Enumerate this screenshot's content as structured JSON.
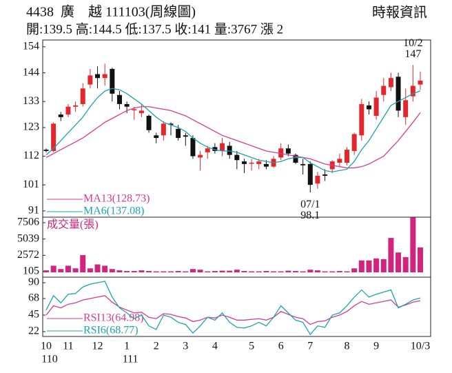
{
  "chart_data": [
    {
      "type": "candlestick",
      "title": "4438  廣　越 111103(周線圖)",
      "subtitle": "開:139.5 高:144.5 低:137.5 收:141 量:3767 漲 2",
      "source": "時報資訊",
      "up_color": "#e3262c",
      "down_color": "#111111",
      "open": [
        114.5,
        114,
        128,
        128,
        131,
        132,
        139.5,
        143.5,
        142,
        145.5,
        135.5,
        132,
        130,
        128.5,
        127.5,
        120,
        120,
        124.5,
        122.5,
        120,
        119,
        111.5,
        113.5,
        115.5,
        114,
        116,
        112.5,
        110,
        109.5,
        109,
        109,
        108,
        111.5,
        115,
        112.5,
        109,
        109,
        101.5,
        105,
        107,
        109.5,
        109.5,
        114,
        120,
        131.5,
        127.5,
        135.5,
        138.5,
        142.5,
        127,
        135,
        139.5
      ],
      "high": [
        115,
        125,
        129,
        132,
        133,
        140,
        145.5,
        146.5,
        147.5,
        146,
        137,
        133,
        131,
        132,
        128,
        121,
        125.5,
        125,
        124,
        121,
        120,
        114,
        116,
        117,
        119,
        117.5,
        114,
        111,
        111,
        111,
        110.5,
        112,
        117,
        116.5,
        113,
        111,
        110,
        106,
        107,
        110.5,
        113,
        115.5,
        121,
        134,
        133,
        137,
        142,
        144,
        144,
        138,
        147,
        144.5
      ],
      "low": [
        113.5,
        113.5,
        125.5,
        127,
        129,
        131,
        138,
        138,
        139,
        133,
        130,
        128.5,
        126,
        127,
        121,
        117,
        118,
        120,
        118,
        116,
        111,
        106.5,
        111,
        113,
        112,
        111,
        107,
        105.5,
        106.5,
        107,
        107,
        107.5,
        110.5,
        112,
        109,
        105,
        98.1,
        99.5,
        102.5,
        105.5,
        108,
        108.5,
        112.5,
        118,
        128,
        126,
        133,
        137,
        127,
        124,
        133,
        137.5
      ],
      "close": [
        114,
        124.5,
        127,
        131,
        131.5,
        138,
        143,
        142,
        143.5,
        136,
        132,
        131,
        130,
        129.5,
        122,
        119,
        124.5,
        124,
        119,
        119.5,
        112,
        112.5,
        115,
        114,
        117,
        112.5,
        110.5,
        109,
        109.5,
        110,
        108,
        111,
        115,
        113,
        109.5,
        108.5,
        101,
        104.5,
        104.5,
        110,
        111,
        114.5,
        120.5,
        132,
        130,
        134.5,
        139,
        142,
        129.5,
        133.5,
        139,
        141
      ],
      "series": [
        {
          "name": "MA13(128.73)",
          "color": "#d63a8f",
          "values": [
            111.5,
            113,
            114.5,
            116,
            117.5,
            119,
            121,
            123,
            125,
            126.5,
            128,
            129.5,
            130.5,
            131,
            131,
            130.5,
            130,
            129.5,
            128.5,
            127.5,
            126,
            124.5,
            123,
            121.5,
            120,
            119,
            118,
            117,
            116,
            115,
            114,
            113.5,
            113,
            112.5,
            112,
            111.5,
            111,
            110,
            109,
            108.5,
            108,
            107.5,
            107.5,
            108,
            109,
            110.5,
            112,
            115,
            118,
            121.5,
            125,
            128.73
          ]
        },
        {
          "name": "MA6(137.08)",
          "color": "#1aa3ae",
          "values": [
            112.5,
            115,
            118,
            121,
            124,
            127,
            131,
            134.5,
            137,
            138,
            137.5,
            136,
            134,
            132,
            129.5,
            127,
            125,
            124,
            123,
            121.5,
            119,
            117,
            115.5,
            114.5,
            114,
            114,
            113.5,
            112.5,
            111.5,
            110.5,
            110,
            109.5,
            110,
            111,
            111.5,
            111.5,
            109.5,
            108,
            106.5,
            106,
            106.5,
            107,
            110,
            114.5,
            118,
            122.5,
            127,
            131.5,
            133,
            134.5,
            136,
            137.08
          ]
        }
      ],
      "annotations": [
        {
          "date": "07/1",
          "value": 98.1
        },
        {
          "date": "10/2",
          "value": 147
        }
      ],
      "ylim": [
        88.6,
        156.6
      ],
      "yticks": [
        154,
        144,
        133,
        123,
        112,
        101,
        91
      ]
    },
    {
      "type": "bar",
      "title": "成交量(張)",
      "color": "#d0247f",
      "values": [
        300,
        1000,
        500,
        1000,
        600,
        2600,
        600,
        1200,
        1000,
        500,
        300,
        200,
        200,
        300,
        200,
        150,
        150,
        150,
        200,
        150,
        500,
        400,
        150,
        200,
        250,
        250,
        400,
        200,
        150,
        150,
        200,
        150,
        150,
        250,
        200,
        150,
        400,
        300,
        150,
        150,
        200,
        150,
        600,
        1800,
        1800,
        2100,
        2000,
        5200,
        3000,
        2300,
        8300,
        3767
      ],
      "ylim": [
        -730,
        8340
      ],
      "yticks": [
        7506,
        5039,
        2572,
        105
      ]
    },
    {
      "type": "line",
      "categories": [
        "10",
        null,
        null,
        "11",
        null,
        null,
        null,
        "12",
        null,
        null,
        null,
        "1",
        null,
        null,
        null,
        "2",
        null,
        null,
        null,
        "3",
        null,
        null,
        null,
        "4",
        null,
        null,
        null,
        null,
        "5",
        null,
        null,
        null,
        "6",
        null,
        null,
        null,
        "7",
        null,
        null,
        null,
        null,
        "8",
        null,
        null,
        null,
        "9",
        null,
        null,
        null,
        null,
        null,
        "10/3"
      ],
      "year_labels": [
        "110",
        null,
        null,
        null,
        null,
        null,
        null,
        null,
        null,
        null,
        null,
        "111",
        null,
        null,
        null,
        null,
        null,
        null,
        null,
        null,
        null,
        null,
        null,
        null,
        null,
        null,
        null,
        null,
        null,
        null,
        null,
        null,
        null,
        null,
        null,
        null,
        null,
        null,
        null,
        null,
        null,
        null,
        null,
        null,
        null,
        null,
        null,
        null,
        null,
        null,
        null,
        null
      ],
      "series": [
        {
          "name": "RSI13(64.98)",
          "color": "#d63a8f",
          "values": [
            45,
            58,
            55,
            60,
            62,
            66,
            68,
            70,
            72,
            63,
            56,
            52,
            48,
            49,
            42,
            40,
            47,
            46,
            43,
            41,
            36,
            38,
            42,
            41,
            45,
            42,
            38,
            38,
            39,
            40,
            38,
            42,
            50,
            46,
            42,
            40,
            32,
            36,
            37,
            42,
            45,
            50,
            58,
            64,
            60,
            62,
            64,
            66,
            56,
            59,
            63,
            64.98
          ]
        },
        {
          "name": "RSI6(68.77)",
          "color": "#1aa3ae",
          "values": [
            52,
            72,
            62,
            74,
            75,
            84,
            88,
            90,
            92,
            70,
            55,
            48,
            40,
            45,
            30,
            25,
            45,
            42,
            35,
            32,
            20,
            30,
            42,
            38,
            48,
            35,
            28,
            27,
            30,
            35,
            30,
            42,
            58,
            48,
            38,
            35,
            18,
            30,
            28,
            45,
            48,
            58,
            70,
            80,
            70,
            74,
            77,
            80,
            55,
            60,
            66,
            68.77
          ]
        }
      ],
      "ylim": [
        15.3,
        97.7
      ],
      "yticks": [
        90,
        68,
        45,
        22
      ]
    }
  ]
}
